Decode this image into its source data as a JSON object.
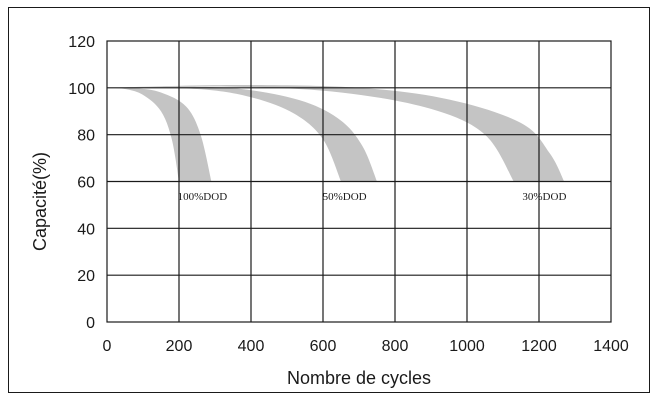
{
  "chart_data": {
    "type": "area",
    "title": "",
    "xlabel": "Nombre de cycles",
    "ylabel": "Capacité(%)",
    "xlim": [
      0,
      1400
    ],
    "ylim": [
      0,
      120
    ],
    "x_ticks": [
      0,
      200,
      400,
      600,
      800,
      1000,
      1200,
      1400
    ],
    "y_ticks": [
      0,
      20,
      40,
      60,
      80,
      100,
      120
    ],
    "grid": true,
    "colors": {
      "band": "#c4c4c4",
      "grid": "#1a1a1a",
      "frame": "#1a1a1a"
    },
    "series": [
      {
        "label": "100%DOD",
        "label_at": [
          265,
          52
        ],
        "lower": [
          [
            0,
            100
          ],
          [
            50,
            99.5
          ],
          [
            100,
            97
          ],
          [
            150,
            90
          ],
          [
            180,
            78
          ],
          [
            200,
            60
          ]
        ],
        "upper": [
          [
            0,
            100
          ],
          [
            80,
            99.8
          ],
          [
            150,
            98
          ],
          [
            220,
            92
          ],
          [
            260,
            80
          ],
          [
            290,
            60
          ]
        ]
      },
      {
        "label": "50%DOD",
        "label_at": [
          660,
          52
        ],
        "lower": [
          [
            0,
            100
          ],
          [
            250,
            99.5
          ],
          [
            400,
            96
          ],
          [
            520,
            89
          ],
          [
            600,
            78
          ],
          [
            650,
            60
          ]
        ],
        "upper": [
          [
            0,
            100
          ],
          [
            250,
            100.5
          ],
          [
            400,
            99
          ],
          [
            550,
            94
          ],
          [
            650,
            86
          ],
          [
            710,
            75
          ],
          [
            750,
            60
          ]
        ]
      },
      {
        "label": "30%DOD",
        "label_at": [
          1215,
          52
        ],
        "lower": [
          [
            0,
            100
          ],
          [
            350,
            100.5
          ],
          [
            650,
            98
          ],
          [
            900,
            91
          ],
          [
            1050,
            80
          ],
          [
            1130,
            60
          ]
        ],
        "upper": [
          [
            0,
            100
          ],
          [
            350,
            101.2
          ],
          [
            700,
            100
          ],
          [
            950,
            95
          ],
          [
            1150,
            85
          ],
          [
            1230,
            72
          ],
          [
            1270,
            60
          ]
        ]
      }
    ]
  }
}
